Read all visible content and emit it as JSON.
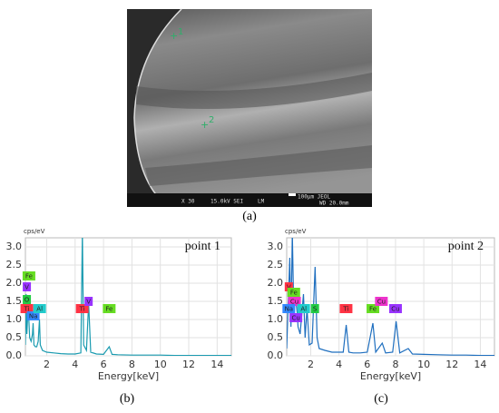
{
  "image": {
    "markers": [
      "1",
      "2"
    ],
    "info": [
      "X 30",
      "15.0kV SEI",
      "LM",
      "100μm JEOL",
      "WD 20.0mm"
    ]
  },
  "captions": [
    "(a)",
    "(b)",
    "(c)"
  ],
  "chart_data": [
    {
      "type": "line",
      "title": "point 1",
      "y_label": "cps/eV",
      "x_label": "Energy[keV]",
      "xlim": [
        0.5,
        15
      ],
      "ylim": [
        0,
        3.25
      ],
      "grid": true,
      "xticks": [
        2,
        4,
        6,
        8,
        10,
        12,
        14
      ],
      "yticks": [
        {
          "value": 0,
          "label": "0.0"
        },
        {
          "value": 0.5,
          "label": "0.5"
        },
        {
          "value": 1,
          "label": "1.0"
        },
        {
          "value": 1.5,
          "label": "1.5"
        },
        {
          "value": 2,
          "label": "2.0"
        },
        {
          "value": 2.5,
          "label": "2.5"
        },
        {
          "value": 3,
          "label": "3.0"
        }
      ],
      "x": [
        0.5,
        0.55,
        0.6,
        0.7,
        0.8,
        0.9,
        1.0,
        1.04,
        1.1,
        1.2,
        1.3,
        1.4,
        1.49,
        1.55,
        1.7,
        2.0,
        2.5,
        3.0,
        3.5,
        4.0,
        4.4,
        4.51,
        4.6,
        4.8,
        4.95,
        5.1,
        5.5,
        6.0,
        6.4,
        6.6,
        7.0,
        8.0,
        9.0,
        10.0,
        11.0,
        12.0,
        13.0,
        14.0,
        15.0
      ],
      "series": [
        {
          "color": "#1a9bb0",
          "values": [
            0.3,
            1.7,
            0.6,
            1.4,
            0.5,
            0.4,
            0.6,
            0.9,
            0.3,
            0.25,
            0.25,
            0.4,
            1.0,
            0.3,
            0.15,
            0.1,
            0.08,
            0.06,
            0.05,
            0.05,
            0.08,
            3.4,
            0.3,
            0.15,
            1.45,
            0.1,
            0.05,
            0.04,
            0.25,
            0.04,
            0.03,
            0.02,
            0.02,
            0.02,
            0.01,
            0.01,
            0.01,
            0.01,
            0.01
          ]
        }
      ],
      "annotations": [
        {
          "text": "Fe",
          "x": 0.75,
          "y": 2.2,
          "color": "#66dd22"
        },
        {
          "text": "V",
          "x": 0.6,
          "y": 1.9,
          "color": "#9933ff"
        },
        {
          "text": "O",
          "x": 0.6,
          "y": 1.55,
          "color": "#22cc44"
        },
        {
          "text": "Ti",
          "x": 0.6,
          "y": 1.3,
          "color": "#ff3344"
        },
        {
          "text": "Na",
          "x": 1.05,
          "y": 1.1,
          "color": "#3388ff"
        },
        {
          "text": "Al",
          "x": 1.5,
          "y": 1.3,
          "color": "#22cccc"
        },
        {
          "text": "Ti",
          "x": 4.5,
          "y": 1.3,
          "color": "#ff3344"
        },
        {
          "text": "V",
          "x": 4.95,
          "y": 1.5,
          "color": "#9933ff"
        },
        {
          "text": "Fe",
          "x": 6.4,
          "y": 1.3,
          "color": "#66dd22"
        }
      ]
    },
    {
      "type": "line",
      "title": "point 2",
      "y_label": "cps/eV",
      "x_label": "Energy[keV]",
      "xlim": [
        0.3,
        15
      ],
      "ylim": [
        0,
        3.25
      ],
      "grid": true,
      "xticks": [
        2,
        4,
        6,
        8,
        10,
        12,
        14
      ],
      "yticks": [
        {
          "value": 0,
          "label": "0.0"
        },
        {
          "value": 0.5,
          "label": "0.5"
        },
        {
          "value": 1,
          "label": "1.0"
        },
        {
          "value": 1.5,
          "label": "1.5"
        },
        {
          "value": 2,
          "label": "2.0"
        },
        {
          "value": 2.5,
          "label": "2.5"
        },
        {
          "value": 3,
          "label": "3.0"
        }
      ],
      "x": [
        0.3,
        0.52,
        0.6,
        0.7,
        0.8,
        0.93,
        1.04,
        1.1,
        1.25,
        1.49,
        1.6,
        1.74,
        1.9,
        2.1,
        2.31,
        2.45,
        2.6,
        3.0,
        3.5,
        4.0,
        4.3,
        4.51,
        4.7,
        5.0,
        5.5,
        6.0,
        6.4,
        6.6,
        7.06,
        7.3,
        7.8,
        8.04,
        8.3,
        8.9,
        9.2,
        10,
        11,
        12,
        13,
        14,
        15
      ],
      "series": [
        {
          "color": "#1f6fbf",
          "values": [
            0.2,
            2.7,
            0.8,
            3.4,
            1.2,
            1.6,
            1.2,
            0.8,
            0.6,
            1.7,
            0.5,
            1.3,
            0.3,
            0.35,
            2.45,
            0.5,
            0.2,
            0.15,
            0.1,
            0.1,
            0.1,
            0.85,
            0.1,
            0.08,
            0.08,
            0.1,
            0.9,
            0.1,
            0.35,
            0.08,
            0.1,
            0.95,
            0.08,
            0.2,
            0.05,
            0.04,
            0.03,
            0.02,
            0.02,
            0.01,
            0.01
          ]
        }
      ],
      "annotations": [
        {
          "text": "V",
          "x": 0.45,
          "y": 1.9,
          "color": "#ff3344"
        },
        {
          "text": "Fe",
          "x": 0.8,
          "y": 1.75,
          "color": "#66dd22"
        },
        {
          "text": "Cu",
          "x": 0.85,
          "y": 1.5,
          "color": "#ee33cc"
        },
        {
          "text": "Na",
          "x": 0.45,
          "y": 1.3,
          "color": "#3388ff"
        },
        {
          "text": "Al",
          "x": 1.5,
          "y": 1.3,
          "color": "#22cccc"
        },
        {
          "text": "Cu",
          "x": 0.95,
          "y": 1.05,
          "color": "#9933ff"
        },
        {
          "text": "S",
          "x": 2.3,
          "y": 1.3,
          "color": "#22cc44"
        },
        {
          "text": "Ti",
          "x": 4.5,
          "y": 1.3,
          "color": "#ff3344"
        },
        {
          "text": "Fe",
          "x": 6.4,
          "y": 1.3,
          "color": "#66dd22"
        },
        {
          "text": "Cu",
          "x": 7.0,
          "y": 1.5,
          "color": "#ee33cc"
        },
        {
          "text": "Cu",
          "x": 8.0,
          "y": 1.3,
          "color": "#9933ff"
        }
      ]
    }
  ]
}
